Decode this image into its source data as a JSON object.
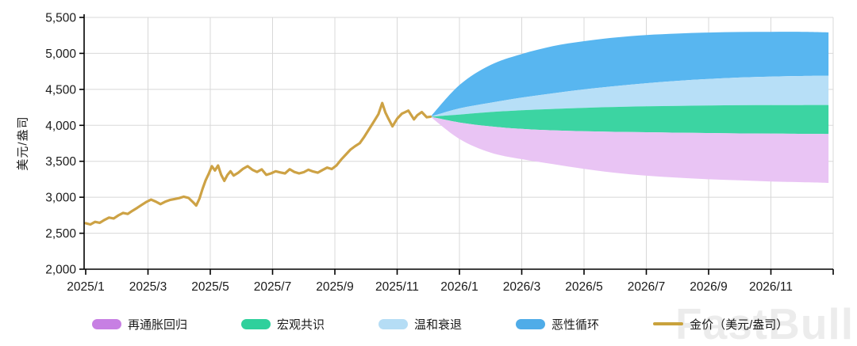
{
  "watermark": {
    "text": "FastBull"
  },
  "chart_data": {
    "type": "area",
    "title": "",
    "xlabel": "",
    "ylabel": "美元/盎司",
    "grid": true,
    "grid_color": "#D8D8D8",
    "axis_color": "#000000",
    "yaxis": {
      "min": 2000,
      "max": 5500,
      "step": 500,
      "tick_values": [
        2000,
        2500,
        3000,
        3500,
        4000,
        4500,
        5000,
        5500
      ],
      "tick_labels": [
        "2,000",
        "2,500",
        "3,000",
        "3,500",
        "4,000",
        "4,500",
        "5,000",
        "5,500"
      ]
    },
    "xaxis": {
      "months_domain": [
        0,
        24
      ],
      "ticks": [
        {
          "m": 0,
          "label": "2025/1"
        },
        {
          "m": 2,
          "label": "2025/3"
        },
        {
          "m": 4,
          "label": "2025/5"
        },
        {
          "m": 6,
          "label": "2025/7"
        },
        {
          "m": 8,
          "label": "2025/9"
        },
        {
          "m": 10,
          "label": "2025/11"
        },
        {
          "m": 12,
          "label": "2026/1"
        },
        {
          "m": 14,
          "label": "2026/3"
        },
        {
          "m": 16,
          "label": "2026/5"
        },
        {
          "m": 18,
          "label": "2026/7"
        },
        {
          "m": 20,
          "label": "2026/9"
        },
        {
          "m": 22,
          "label": "2026/11"
        }
      ],
      "end_tick_m": 24
    },
    "line": {
      "name": "金价（美元/盎司）",
      "color": "#CDA245",
      "width": 3.2,
      "points": [
        [
          0.0,
          2640
        ],
        [
          0.15,
          2622
        ],
        [
          0.3,
          2658
        ],
        [
          0.45,
          2645
        ],
        [
          0.6,
          2685
        ],
        [
          0.75,
          2718
        ],
        [
          0.9,
          2705
        ],
        [
          1.05,
          2748
        ],
        [
          1.2,
          2782
        ],
        [
          1.35,
          2768
        ],
        [
          1.5,
          2812
        ],
        [
          1.65,
          2852
        ],
        [
          1.8,
          2895
        ],
        [
          1.95,
          2935
        ],
        [
          2.1,
          2968
        ],
        [
          2.25,
          2940
        ],
        [
          2.4,
          2905
        ],
        [
          2.55,
          2938
        ],
        [
          2.7,
          2962
        ],
        [
          2.85,
          2975
        ],
        [
          3.0,
          2988
        ],
        [
          3.15,
          3008
        ],
        [
          3.3,
          2992
        ],
        [
          3.45,
          2930
        ],
        [
          3.55,
          2885
        ],
        [
          3.65,
          2980
        ],
        [
          3.75,
          3115
        ],
        [
          3.85,
          3235
        ],
        [
          3.95,
          3325
        ],
        [
          4.05,
          3432
        ],
        [
          4.15,
          3372
        ],
        [
          4.25,
          3442
        ],
        [
          4.35,
          3312
        ],
        [
          4.45,
          3228
        ],
        [
          4.55,
          3310
        ],
        [
          4.65,
          3362
        ],
        [
          4.75,
          3302
        ],
        [
          4.9,
          3342
        ],
        [
          5.05,
          3395
        ],
        [
          5.2,
          3432
        ],
        [
          5.35,
          3382
        ],
        [
          5.5,
          3352
        ],
        [
          5.65,
          3388
        ],
        [
          5.8,
          3312
        ],
        [
          5.95,
          3332
        ],
        [
          6.1,
          3362
        ],
        [
          6.25,
          3345
        ],
        [
          6.4,
          3332
        ],
        [
          6.55,
          3390
        ],
        [
          6.7,
          3352
        ],
        [
          6.85,
          3332
        ],
        [
          7.0,
          3348
        ],
        [
          7.15,
          3382
        ],
        [
          7.3,
          3358
        ],
        [
          7.45,
          3342
        ],
        [
          7.6,
          3378
        ],
        [
          7.75,
          3412
        ],
        [
          7.9,
          3392
        ],
        [
          8.05,
          3442
        ],
        [
          8.2,
          3522
        ],
        [
          8.35,
          3592
        ],
        [
          8.5,
          3662
        ],
        [
          8.65,
          3710
        ],
        [
          8.8,
          3752
        ],
        [
          8.95,
          3845
        ],
        [
          9.1,
          3948
        ],
        [
          9.25,
          4052
        ],
        [
          9.4,
          4155
        ],
        [
          9.52,
          4310
        ],
        [
          9.62,
          4180
        ],
        [
          9.72,
          4092
        ],
        [
          9.85,
          3985
        ],
        [
          10.0,
          4092
        ],
        [
          10.15,
          4162
        ],
        [
          10.36,
          4205
        ],
        [
          10.54,
          4082
        ],
        [
          10.65,
          4142
        ],
        [
          10.79,
          4185
        ],
        [
          10.95,
          4112
        ],
        [
          11.07,
          4120
        ]
      ]
    },
    "fan": {
      "x": [
        11.07,
        12,
        13,
        14,
        15,
        16,
        17,
        18,
        19,
        20,
        21,
        22,
        23,
        23.85
      ],
      "vicious_top": [
        4120,
        4560,
        4840,
        4990,
        5100,
        5170,
        5220,
        5255,
        5275,
        5290,
        5298,
        5300,
        5300,
        5292
      ],
      "mild_top": [
        4120,
        4235,
        4315,
        4385,
        4445,
        4500,
        4545,
        4585,
        4618,
        4645,
        4665,
        4678,
        4686,
        4688
      ],
      "consensus_top": [
        4120,
        4150,
        4185,
        4210,
        4228,
        4243,
        4255,
        4264,
        4271,
        4276,
        4279,
        4281,
        4282,
        4282
      ],
      "reflation_top": [
        4120,
        4040,
        3985,
        3950,
        3930,
        3918,
        3910,
        3904,
        3898,
        3893,
        3888,
        3884,
        3881,
        3880
      ],
      "reflation_bottom": [
        4120,
        3810,
        3620,
        3530,
        3460,
        3395,
        3340,
        3300,
        3272,
        3250,
        3235,
        3220,
        3210,
        3200
      ]
    },
    "bands": [
      {
        "id": "vicious-cycle",
        "label": "恶性循环",
        "fill": "#58B6F0",
        "upper": "vicious_top",
        "lower": "mild_top"
      },
      {
        "id": "mild-recession",
        "label": "温和衰退",
        "fill": "#B7DFF7",
        "upper": "mild_top",
        "lower": "consensus_top"
      },
      {
        "id": "macro-consensus",
        "label": "宏观共识",
        "fill": "#3CD4A2",
        "upper": "consensus_top",
        "lower": "reflation_top"
      },
      {
        "id": "reflation-return",
        "label": "再通胀回归",
        "fill": "#E9C4F4",
        "upper": "reflation_top",
        "lower": "reflation_bottom"
      }
    ],
    "legend": [
      {
        "id": "reflation-return",
        "label": "再通胀回归",
        "color": "#C77FE3",
        "shape": "box"
      },
      {
        "id": "macro-consensus",
        "label": "宏观共识",
        "color": "#2FD09C",
        "shape": "box"
      },
      {
        "id": "mild-recession",
        "label": "温和衰退",
        "color": "#B5DDF5",
        "shape": "box"
      },
      {
        "id": "vicious-cycle",
        "label": "恶性循环",
        "color": "#4FACE8",
        "shape": "box"
      },
      {
        "id": "gold-price",
        "label": "金价（美元/盎司）",
        "color": "#C9A23C",
        "shape": "line"
      }
    ]
  }
}
